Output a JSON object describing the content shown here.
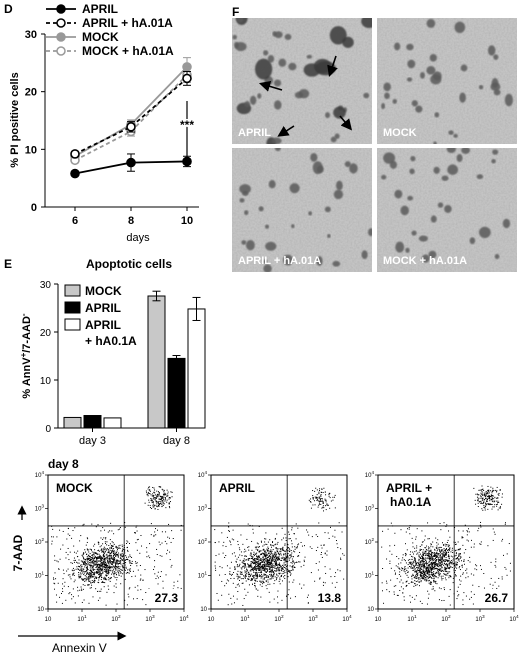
{
  "panel_letters": [
    "D",
    "E",
    "F"
  ],
  "chart_data": [
    {
      "panel": "D",
      "type": "line",
      "xlabel": "days",
      "ylabel": "% PI positive cells",
      "x": [
        6,
        8,
        10
      ],
      "ylim": [
        0,
        30
      ],
      "yticks": [
        0,
        10,
        20,
        30
      ],
      "series": [
        {
          "name": "APRIL",
          "values": [
            5.8,
            7.7,
            7.9
          ],
          "errors": [
            0.3,
            1.5,
            0.9
          ],
          "color": "#000000",
          "dashed": false,
          "marker": "filled"
        },
        {
          "name": "APRIL + hA.01A",
          "values": [
            9.2,
            13.9,
            22.3
          ],
          "errors": [
            0.4,
            0.9,
            1.2
          ],
          "color": "#000000",
          "dashed": true,
          "marker": "open"
        },
        {
          "name": "MOCK",
          "values": [
            8.8,
            14.3,
            24.3
          ],
          "errors": [
            0.4,
            0.8,
            1.6
          ],
          "color": "#999999",
          "dashed": false,
          "marker": "filled"
        },
        {
          "name": "MOCK + hA.01A",
          "values": [
            8.1,
            13.1,
            22.9
          ],
          "errors": [
            0.4,
            0.8,
            1.3
          ],
          "color": "#999999",
          "dashed": true,
          "marker": "open"
        }
      ],
      "annotations": [
        "***"
      ]
    },
    {
      "panel": "E",
      "type": "bar",
      "title": "Apoptotic cells",
      "ylabel": "% AnnV+/7-AAD-",
      "categories": [
        "day 3",
        "day 8"
      ],
      "ylim": [
        0,
        30
      ],
      "yticks": [
        0,
        10,
        20,
        30
      ],
      "series": [
        {
          "name": "MOCK",
          "values": [
            2.2,
            27.5
          ],
          "errors": [
            0,
            1.0
          ],
          "color": "#c8c8c8"
        },
        {
          "name": "APRIL",
          "values": [
            2.6,
            14.5
          ],
          "errors": [
            0,
            0.6
          ],
          "color": "#000000"
        },
        {
          "name": "APRIL + hA0.1A",
          "values": [
            2.1,
            24.8
          ],
          "errors": [
            0,
            2.4
          ],
          "color": "#ffffff"
        }
      ]
    },
    {
      "panel": "E-flow",
      "type": "scatter",
      "heading": "day 8",
      "xlabel": "Annexin V",
      "ylabel": "7-AAD",
      "xticks": [
        "10",
        "10 1",
        "10 2",
        "10 3",
        "10 4"
      ],
      "yticks": [
        "10",
        "10 1",
        "10 2",
        "10 3",
        "10 4"
      ],
      "plots": [
        {
          "label": "MOCK",
          "value": "27.3"
        },
        {
          "label": "APRIL",
          "value": "13.8"
        },
        {
          "label": "APRIL + hA0.1A",
          "value": "26.7"
        }
      ]
    }
  ],
  "legend_e": [
    "MOCK",
    "APRIL",
    "APRIL",
    "+ hA0.1A"
  ],
  "micrographs": [
    {
      "label": "APRIL",
      "seed": 11,
      "arrows": true
    },
    {
      "label": "MOCK",
      "seed": 23,
      "arrows": false
    },
    {
      "label": "APRIL + hA.01A",
      "seed": 37,
      "arrows": false
    },
    {
      "label": "MOCK + hA.01A",
      "seed": 53,
      "arrows": false
    }
  ]
}
